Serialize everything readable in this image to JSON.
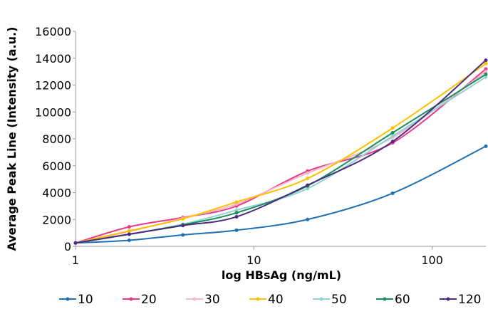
{
  "chart_data": {
    "type": "line",
    "title": "",
    "xlabel": "log HBsAg (ng/mL)",
    "ylabel": "Average Peak  Line (Intensity (a.u.)",
    "x_scale": "log",
    "xlim": [
      1,
      200
    ],
    "ylim": [
      0,
      16000
    ],
    "x_ticks": [
      "1",
      "10",
      "100"
    ],
    "y_ticks": [
      "0",
      "2000",
      "4000",
      "6000",
      "8000",
      "10000",
      "12000",
      "14000",
      "16000"
    ],
    "grid": false,
    "legend_position": "bottom",
    "x": [
      1,
      2,
      4,
      8,
      20,
      60,
      200
    ],
    "series": [
      {
        "name": "10",
        "color": "#1f6fb5",
        "values": [
          250,
          450,
          850,
          1200,
          2000,
          3950,
          7450
        ]
      },
      {
        "name": "20",
        "color": "#e8388a",
        "values": [
          250,
          1450,
          2150,
          3000,
          5600,
          7700,
          13200
        ]
      },
      {
        "name": "30",
        "color": "#f2b8cc",
        "values": [
          250,
          1100,
          2100,
          3150,
          5450,
          8100,
          13000
        ]
      },
      {
        "name": "40",
        "color": "#ffc000",
        "values": [
          250,
          1150,
          2050,
          3300,
          5050,
          8800,
          13600
        ]
      },
      {
        "name": "50",
        "color": "#92d2d2",
        "values": [
          250,
          900,
          1650,
          2700,
          4300,
          8200,
          12600
        ]
      },
      {
        "name": "60",
        "color": "#1a8f5c",
        "values": [
          250,
          900,
          1600,
          2500,
          4500,
          8450,
          12800
        ]
      },
      {
        "name": "120",
        "color": "#4b2c7f",
        "values": [
          250,
          900,
          1550,
          2200,
          4550,
          7800,
          13850
        ]
      }
    ]
  }
}
